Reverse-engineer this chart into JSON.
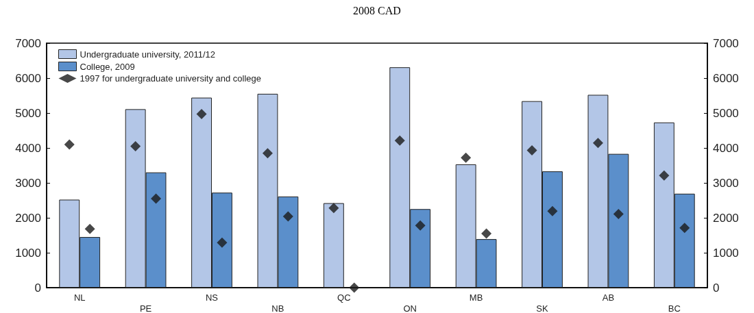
{
  "chart_data": {
    "type": "bar",
    "subtitle": "2008 CAD",
    "categories": [
      "NL",
      "PE",
      "NS",
      "NB",
      "QC",
      "ON",
      "MB",
      "SK",
      "AB",
      "BC"
    ],
    "series": [
      {
        "name": "Undergraduate university, 2011/12",
        "color": "#b3c6e7",
        "values": [
          2520,
          5110,
          5440,
          5550,
          2420,
          6310,
          3530,
          5340,
          5520,
          4730
        ]
      },
      {
        "name": "College, 2009",
        "color": "#5b8fcb",
        "values": [
          1450,
          3300,
          2720,
          2610,
          null,
          2250,
          1390,
          3330,
          3830,
          2690
        ]
      },
      {
        "name": "1997 for undergraduate university and college",
        "type": "scatter",
        "color": "#1a1a1a",
        "marker": "diamond",
        "x": [
          "NL",
          "NL",
          "PE",
          "PE",
          "NS",
          "NS",
          "NB",
          "NB",
          "QC",
          "QC",
          "ON",
          "ON",
          "MB",
          "MB",
          "SK",
          "SK",
          "AB",
          "AB",
          "BC",
          "BC"
        ],
        "values": [
          4100,
          1680,
          4050,
          2550,
          4970,
          1290,
          3850,
          2040,
          2280,
          0,
          4210,
          1780,
          3720,
          1550,
          3930,
          2190,
          4140,
          2110,
          3210,
          1710
        ]
      }
    ],
    "ylim": [
      0,
      7000
    ],
    "yticks": [
      0,
      1000,
      2000,
      3000,
      4000,
      5000,
      6000,
      7000
    ],
    "y2lim": [
      0,
      7000
    ],
    "y2ticks": [
      0,
      1000,
      2000,
      3000,
      4000,
      5000,
      6000,
      7000
    ],
    "grid": false,
    "legend": "top left"
  }
}
